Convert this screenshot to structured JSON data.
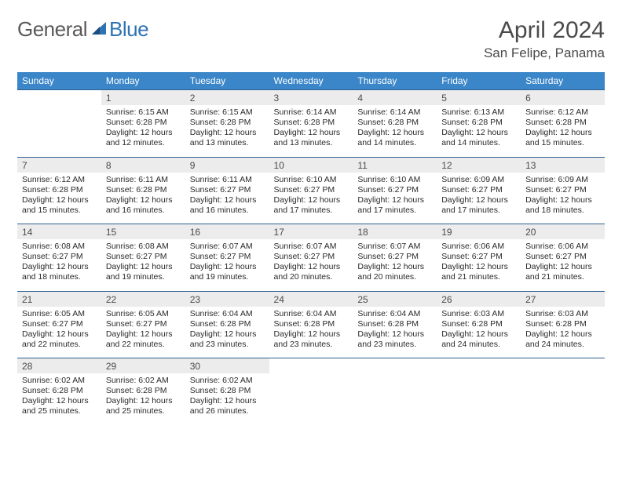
{
  "brand": {
    "part1": "General",
    "part2": "Blue"
  },
  "title": "April 2024",
  "location": "San Felipe, Panama",
  "colors": {
    "header_bg": "#3a86c8",
    "header_text": "#ffffff",
    "daynum_bg": "#ececec",
    "rule": "#2f5f8f",
    "logo_blue": "#2f73b5"
  },
  "weekdays": [
    "Sunday",
    "Monday",
    "Tuesday",
    "Wednesday",
    "Thursday",
    "Friday",
    "Saturday"
  ],
  "weeks": [
    [
      null,
      {
        "n": "1",
        "sr": "6:15 AM",
        "ss": "6:28 PM",
        "dl": "12 hours and 12 minutes."
      },
      {
        "n": "2",
        "sr": "6:15 AM",
        "ss": "6:28 PM",
        "dl": "12 hours and 13 minutes."
      },
      {
        "n": "3",
        "sr": "6:14 AM",
        "ss": "6:28 PM",
        "dl": "12 hours and 13 minutes."
      },
      {
        "n": "4",
        "sr": "6:14 AM",
        "ss": "6:28 PM",
        "dl": "12 hours and 14 minutes."
      },
      {
        "n": "5",
        "sr": "6:13 AM",
        "ss": "6:28 PM",
        "dl": "12 hours and 14 minutes."
      },
      {
        "n": "6",
        "sr": "6:12 AM",
        "ss": "6:28 PM",
        "dl": "12 hours and 15 minutes."
      }
    ],
    [
      {
        "n": "7",
        "sr": "6:12 AM",
        "ss": "6:28 PM",
        "dl": "12 hours and 15 minutes."
      },
      {
        "n": "8",
        "sr": "6:11 AM",
        "ss": "6:28 PM",
        "dl": "12 hours and 16 minutes."
      },
      {
        "n": "9",
        "sr": "6:11 AM",
        "ss": "6:27 PM",
        "dl": "12 hours and 16 minutes."
      },
      {
        "n": "10",
        "sr": "6:10 AM",
        "ss": "6:27 PM",
        "dl": "12 hours and 17 minutes."
      },
      {
        "n": "11",
        "sr": "6:10 AM",
        "ss": "6:27 PM",
        "dl": "12 hours and 17 minutes."
      },
      {
        "n": "12",
        "sr": "6:09 AM",
        "ss": "6:27 PM",
        "dl": "12 hours and 17 minutes."
      },
      {
        "n": "13",
        "sr": "6:09 AM",
        "ss": "6:27 PM",
        "dl": "12 hours and 18 minutes."
      }
    ],
    [
      {
        "n": "14",
        "sr": "6:08 AM",
        "ss": "6:27 PM",
        "dl": "12 hours and 18 minutes."
      },
      {
        "n": "15",
        "sr": "6:08 AM",
        "ss": "6:27 PM",
        "dl": "12 hours and 19 minutes."
      },
      {
        "n": "16",
        "sr": "6:07 AM",
        "ss": "6:27 PM",
        "dl": "12 hours and 19 minutes."
      },
      {
        "n": "17",
        "sr": "6:07 AM",
        "ss": "6:27 PM",
        "dl": "12 hours and 20 minutes."
      },
      {
        "n": "18",
        "sr": "6:07 AM",
        "ss": "6:27 PM",
        "dl": "12 hours and 20 minutes."
      },
      {
        "n": "19",
        "sr": "6:06 AM",
        "ss": "6:27 PM",
        "dl": "12 hours and 21 minutes."
      },
      {
        "n": "20",
        "sr": "6:06 AM",
        "ss": "6:27 PM",
        "dl": "12 hours and 21 minutes."
      }
    ],
    [
      {
        "n": "21",
        "sr": "6:05 AM",
        "ss": "6:27 PM",
        "dl": "12 hours and 22 minutes."
      },
      {
        "n": "22",
        "sr": "6:05 AM",
        "ss": "6:27 PM",
        "dl": "12 hours and 22 minutes."
      },
      {
        "n": "23",
        "sr": "6:04 AM",
        "ss": "6:28 PM",
        "dl": "12 hours and 23 minutes."
      },
      {
        "n": "24",
        "sr": "6:04 AM",
        "ss": "6:28 PM",
        "dl": "12 hours and 23 minutes."
      },
      {
        "n": "25",
        "sr": "6:04 AM",
        "ss": "6:28 PM",
        "dl": "12 hours and 23 minutes."
      },
      {
        "n": "26",
        "sr": "6:03 AM",
        "ss": "6:28 PM",
        "dl": "12 hours and 24 minutes."
      },
      {
        "n": "27",
        "sr": "6:03 AM",
        "ss": "6:28 PM",
        "dl": "12 hours and 24 minutes."
      }
    ],
    [
      {
        "n": "28",
        "sr": "6:02 AM",
        "ss": "6:28 PM",
        "dl": "12 hours and 25 minutes."
      },
      {
        "n": "29",
        "sr": "6:02 AM",
        "ss": "6:28 PM",
        "dl": "12 hours and 25 minutes."
      },
      {
        "n": "30",
        "sr": "6:02 AM",
        "ss": "6:28 PM",
        "dl": "12 hours and 26 minutes."
      },
      null,
      null,
      null,
      null
    ]
  ],
  "labels": {
    "sunrise": "Sunrise: ",
    "sunset": "Sunset: ",
    "daylight": "Daylight: "
  }
}
